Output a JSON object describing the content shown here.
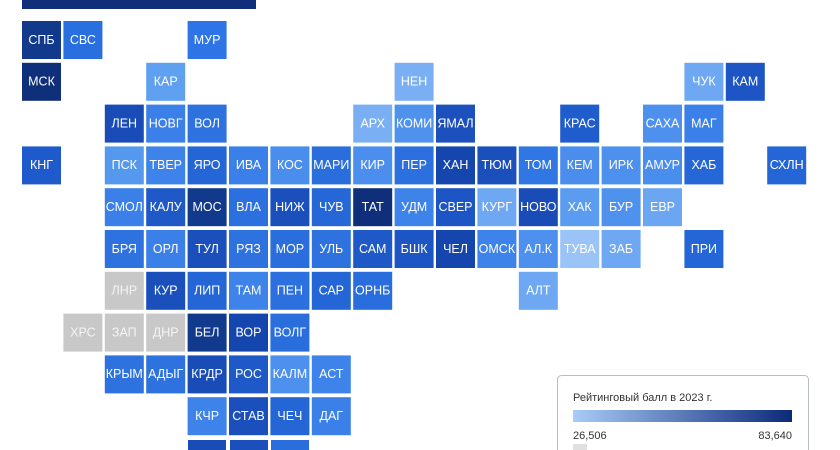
{
  "tiles": [
    {
      "label": "СПБ",
      "color": "#123a8c"
    },
    {
      "label": "СВС",
      "color": "#2a6fdf"
    },
    {
      "label": "МУР",
      "color": "#2e74e6"
    },
    {
      "label": "МСК",
      "color": "#0f2f7a"
    },
    {
      "label": "КАР",
      "color": "#5fa0f0"
    },
    {
      "label": "НЕН",
      "color": "#7ab0f3"
    },
    {
      "label": "ЧУК",
      "color": "#6ea8f2"
    },
    {
      "label": "КАМ",
      "color": "#1d55c4"
    },
    {
      "label": "ЛЕН",
      "color": "#1a4cb8"
    },
    {
      "label": "НОВГ",
      "color": "#3b80e8"
    },
    {
      "label": "ВОЛ",
      "color": "#2e72e0"
    },
    {
      "label": "АРХ",
      "color": "#7ab0f3"
    },
    {
      "label": "КОМИ",
      "color": "#4f92ee"
    },
    {
      "label": "ЯМАЛ",
      "color": "#1c50bd"
    },
    {
      "label": "КРАС",
      "color": "#1f5ccc"
    },
    {
      "label": "САХА",
      "color": "#4d90ee"
    },
    {
      "label": "МАГ",
      "color": "#3a80e8"
    },
    {
      "label": "КНГ",
      "color": "#1f5acc"
    },
    {
      "label": "ПСК",
      "color": "#5599ef"
    },
    {
      "label": "ТВЕР",
      "color": "#3d83ea"
    },
    {
      "label": "ЯРО",
      "color": "#2466d6"
    },
    {
      "label": "ИВА",
      "color": "#3a80e8"
    },
    {
      "label": "КОС",
      "color": "#4a8eed"
    },
    {
      "label": "МАРИ",
      "color": "#2a6ede"
    },
    {
      "label": "КИР",
      "color": "#4b8eed"
    },
    {
      "label": "ПЕР",
      "color": "#2c6fdf"
    },
    {
      "label": "ХАН",
      "color": "#1446ae"
    },
    {
      "label": "ТЮМ",
      "color": "#1a4fbc"
    },
    {
      "label": "ТОМ",
      "color": "#3077e3"
    },
    {
      "label": "КЕМ",
      "color": "#4a8ded"
    },
    {
      "label": "ИРК",
      "color": "#4d90ee"
    },
    {
      "label": "АМУР",
      "color": "#4a8eed"
    },
    {
      "label": "ХАБ",
      "color": "#2567d7"
    },
    {
      "label": "СХЛН",
      "color": "#2466d6"
    },
    {
      "label": "СМОЛ",
      "color": "#3b80e8"
    },
    {
      "label": "КАЛУ",
      "color": "#1f59c8"
    },
    {
      "label": "МОС",
      "color": "#123a8c"
    },
    {
      "label": "ВЛА",
      "color": "#2c6fdf"
    },
    {
      "label": "НИЖ",
      "color": "#1a4fbc"
    },
    {
      "label": "ЧУВ",
      "color": "#2567d7"
    },
    {
      "label": "ТАТ",
      "color": "#0f2f7a"
    },
    {
      "label": "УДМ",
      "color": "#3d83ea"
    },
    {
      "label": "СВЕР",
      "color": "#1d55c4"
    },
    {
      "label": "КУРГ",
      "color": "#6ea8f2"
    },
    {
      "label": "НОВО",
      "color": "#1a4cb8"
    },
    {
      "label": "ХАК",
      "color": "#5b9cf0"
    },
    {
      "label": "БУР",
      "color": "#4f92ee"
    },
    {
      "label": "ЕВР",
      "color": "#6aa6f2"
    },
    {
      "label": "БРЯ",
      "color": "#2e72e0"
    },
    {
      "label": "ОРЛ",
      "color": "#3a80e8"
    },
    {
      "label": "ТУЛ",
      "color": "#1a4fbc"
    },
    {
      "label": "РЯЗ",
      "color": "#2e72e0"
    },
    {
      "label": "МОР",
      "color": "#2a6ede"
    },
    {
      "label": "УЛЬ",
      "color": "#2e72e0"
    },
    {
      "label": "САМ",
      "color": "#1f59c8"
    },
    {
      "label": "БШК",
      "color": "#1d55c4"
    },
    {
      "label": "ЧЕЛ",
      "color": "#1446ae"
    },
    {
      "label": "ОМСК",
      "color": "#3d83ea"
    },
    {
      "label": "АЛ.К",
      "color": "#4d90ee"
    },
    {
      "label": "ТУВА",
      "color": "#9ac4f7"
    },
    {
      "label": "ЗАБ",
      "color": "#6ea8f2"
    },
    {
      "label": "ПРИ",
      "color": "#2466d6"
    },
    {
      "label": "ЛНР",
      "color": "#c8c8c8"
    },
    {
      "label": "КУР",
      "color": "#1a4fbc"
    },
    {
      "label": "ЛИП",
      "color": "#2466d6"
    },
    {
      "label": "ТАМ",
      "color": "#3d83ea"
    },
    {
      "label": "ПЕН",
      "color": "#2c6fdf"
    },
    {
      "label": "САР",
      "color": "#2466d6"
    },
    {
      "label": "ОРНБ",
      "color": "#2a6ede"
    },
    {
      "label": "АЛТ",
      "color": "#6ea8f2"
    },
    {
      "label": "ХРС",
      "color": "#c8c8c8"
    },
    {
      "label": "ЗАП",
      "color": "#c8c8c8"
    },
    {
      "label": "ДНР",
      "color": "#c8c8c8"
    },
    {
      "label": "БЕЛ",
      "color": "#123a8c"
    },
    {
      "label": "ВОР",
      "color": "#1446ae"
    },
    {
      "label": "ВОЛГ",
      "color": "#2a6ede"
    },
    {
      "label": "КРЫМ",
      "color": "#2e72e0"
    },
    {
      "label": "АДЫГ",
      "color": "#2e72e0"
    },
    {
      "label": "КРДР",
      "color": "#1a4cb8"
    },
    {
      "label": "РОС",
      "color": "#1f59c8"
    },
    {
      "label": "КАЛМ",
      "color": "#4d90ee"
    },
    {
      "label": "АСТ",
      "color": "#3d83ea"
    },
    {
      "label": "КЧР",
      "color": "#3d83ea"
    },
    {
      "label": "СТАВ",
      "color": "#1a4fbc"
    },
    {
      "label": "ЧЕЧ",
      "color": "#2466d6"
    },
    {
      "label": "ДАГ",
      "color": "#3a80e8"
    }
  ],
  "legend": {
    "title": "Рейтинговый балл в 2023 г.",
    "min": {
      "value": 26506,
      "label": "26,506"
    },
    "max": {
      "value": 83640,
      "label": "83,640"
    },
    "gradient": [
      "#a8ccf7",
      "#0a2a7a"
    ]
  }
}
